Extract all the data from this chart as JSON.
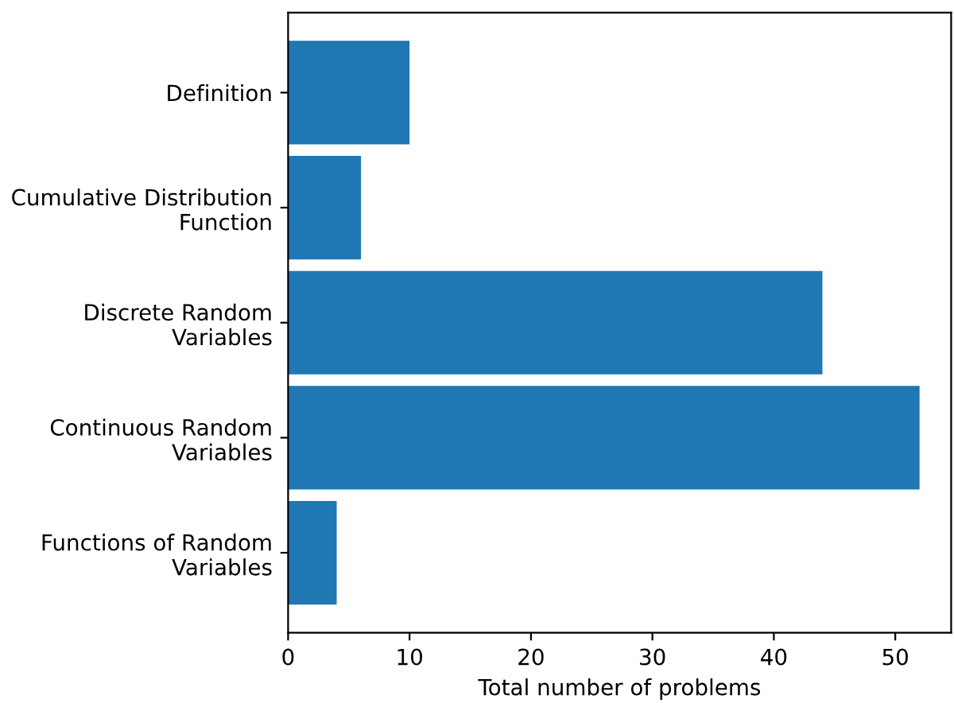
{
  "chart_data": {
    "type": "bar",
    "orientation": "horizontal",
    "xlabel": "Total number of problems",
    "categories": [
      "Definition",
      "Cumulative Distribution\nFunction",
      "Discrete Random\nVariables",
      "Continuous Random\nVariables",
      "Functions of Random\nVariables"
    ],
    "values": [
      10,
      6,
      44,
      52,
      4
    ],
    "color": "#1f77b4",
    "xlim": [
      0,
      54.6
    ],
    "xticks": [
      0,
      10,
      20,
      30,
      40,
      50
    ],
    "grid": false,
    "legend": false
  }
}
